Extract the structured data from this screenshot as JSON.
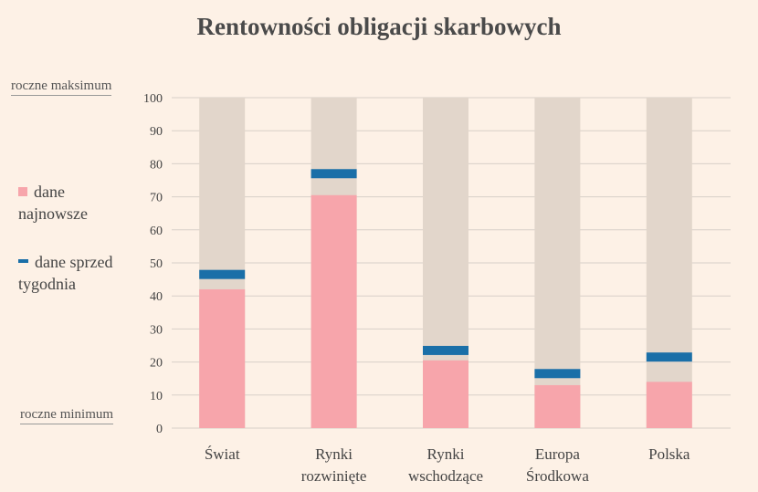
{
  "chart_data": {
    "type": "bar",
    "title": "Rentowności obligacji skarbowych",
    "categories": [
      [
        "Świat"
      ],
      [
        "Rynki",
        "rozwinięte"
      ],
      [
        "Rynki",
        "wschodzące"
      ],
      [
        "Europa",
        "Środkowa"
      ],
      [
        "Polska"
      ]
    ],
    "series": [
      {
        "name": "dane najnowsze",
        "values": [
          42,
          70.5,
          20.5,
          13,
          14
        ]
      },
      {
        "name": "dane sprzed tygodnia",
        "values": [
          46.5,
          77,
          23.5,
          16.5,
          21.5
        ]
      }
    ],
    "range_min": [
      0,
      0,
      0,
      0,
      0
    ],
    "range_max": [
      100,
      100,
      100,
      100,
      100
    ],
    "ylim": [
      0,
      100
    ],
    "yticks": [
      0,
      10,
      20,
      30,
      40,
      50,
      60,
      70,
      80,
      90,
      100
    ],
    "grid": true,
    "legend": {
      "latest_line1": "dane",
      "latest_line2": "najnowsze",
      "week_line1": "dane sprzed",
      "week_line2": "tygodnia"
    },
    "annotations": {
      "max_label": "roczne maksimum",
      "min_label": "roczne minimum"
    },
    "colors": {
      "background": "#fdf1e6",
      "range": "#e2d6cb",
      "latest": "#f7a5ab",
      "week_ago": "#1a6fa8",
      "grid": "#d8d0c8"
    }
  }
}
